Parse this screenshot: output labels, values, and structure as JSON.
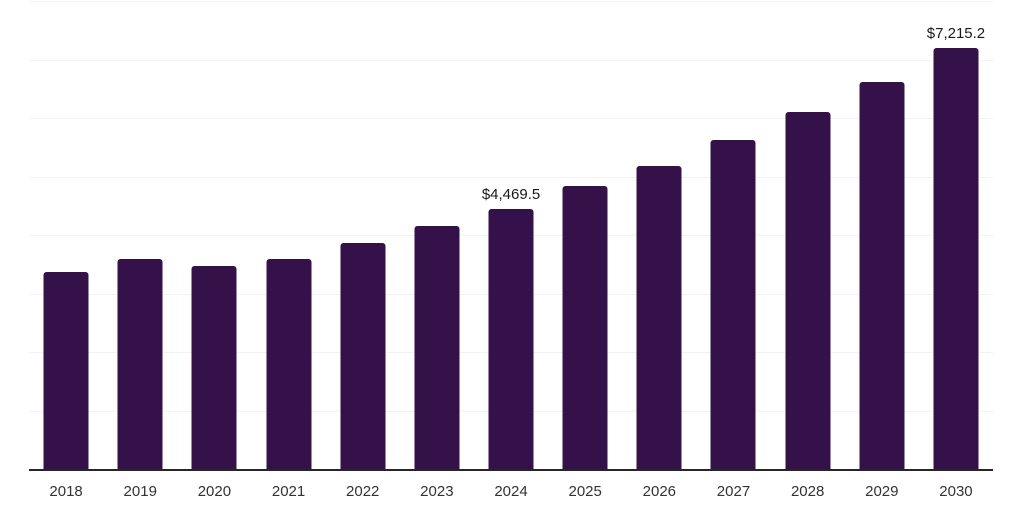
{
  "chart_data": {
    "type": "bar",
    "title": "",
    "xlabel": "",
    "ylabel": "",
    "categories": [
      "2018",
      "2019",
      "2020",
      "2021",
      "2022",
      "2023",
      "2024",
      "2025",
      "2026",
      "2027",
      "2028",
      "2029",
      "2030"
    ],
    "values": [
      3380,
      3600,
      3480,
      3615,
      3880,
      4170,
      4469.5,
      4850,
      5200,
      5640,
      6120,
      6640,
      7215.2
    ],
    "data_labels": {
      "2024": "$4,469.5",
      "2030": "$7,215.2"
    },
    "ylim": [
      0,
      8000
    ],
    "gridline_step": 1000,
    "grid": true,
    "legend_position": "none",
    "y_axis_labels_visible": false
  },
  "colors": {
    "background": "#FFFFFF",
    "bar": "#351149",
    "axis": "#262626",
    "gridline": "#F2F2F2",
    "data_label_text": "#1A1A1A",
    "tick_text": "#333333"
  }
}
